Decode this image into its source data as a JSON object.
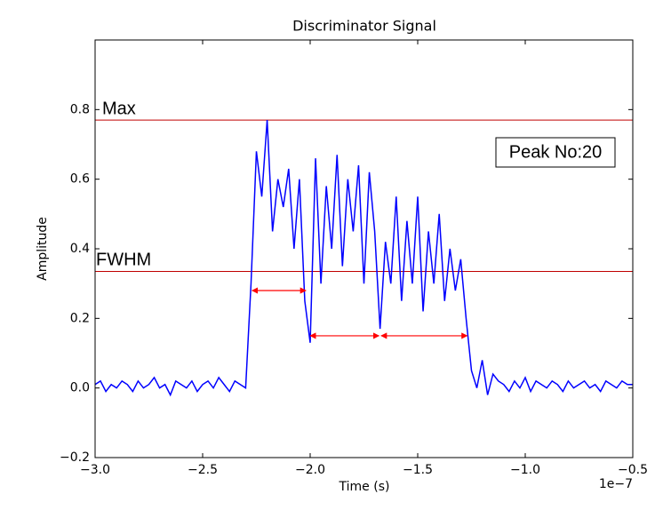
{
  "chart_data": {
    "type": "line",
    "title": "Discriminator Signal",
    "x_label": "Time (s)",
    "y_label": "Amplitude",
    "x_offset_label": "1e−7",
    "x": [
      -3.0,
      -2.975,
      -2.95,
      -2.925,
      -2.9,
      -2.875,
      -2.85,
      -2.825,
      -2.8,
      -2.775,
      -2.75,
      -2.725,
      -2.7,
      -2.675,
      -2.65,
      -2.625,
      -2.6,
      -2.575,
      -2.55,
      -2.525,
      -2.5,
      -2.475,
      -2.45,
      -2.425,
      -2.4,
      -2.375,
      -2.35,
      -2.325,
      -2.3,
      -2.275,
      -2.25,
      -2.225,
      -2.2,
      -2.175,
      -2.15,
      -2.125,
      -2.1,
      -2.075,
      -2.05,
      -2.025,
      -2.0,
      -1.975,
      -1.95,
      -1.925,
      -1.9,
      -1.875,
      -1.85,
      -1.825,
      -1.8,
      -1.775,
      -1.75,
      -1.725,
      -1.7,
      -1.675,
      -1.65,
      -1.625,
      -1.6,
      -1.575,
      -1.55,
      -1.525,
      -1.5,
      -1.475,
      -1.45,
      -1.425,
      -1.4,
      -1.375,
      -1.35,
      -1.325,
      -1.3,
      -1.275,
      -1.25,
      -1.225,
      -1.2,
      -1.175,
      -1.15,
      -1.125,
      -1.1,
      -1.075,
      -1.05,
      -1.025,
      -1.0,
      -0.975,
      -0.95,
      -0.925,
      -0.9,
      -0.875,
      -0.85,
      -0.825,
      -0.8,
      -0.775,
      -0.75,
      -0.725,
      -0.7,
      -0.675,
      -0.65,
      -0.625,
      -0.6,
      -0.575,
      -0.55,
      -0.525,
      -0.5
    ],
    "series": [
      {
        "color": "#0000ff",
        "values": [
          0.01,
          0.02,
          -0.01,
          0.01,
          0.0,
          0.02,
          0.01,
          -0.01,
          0.02,
          0.0,
          0.01,
          0.03,
          0.0,
          0.01,
          -0.02,
          0.02,
          0.01,
          0.0,
          0.02,
          -0.01,
          0.01,
          0.02,
          0.0,
          0.03,
          0.01,
          -0.01,
          0.02,
          0.01,
          0.0,
          0.3,
          0.68,
          0.55,
          0.77,
          0.45,
          0.6,
          0.52,
          0.63,
          0.4,
          0.6,
          0.25,
          0.13,
          0.66,
          0.3,
          0.58,
          0.4,
          0.67,
          0.35,
          0.6,
          0.45,
          0.64,
          0.3,
          0.62,
          0.45,
          0.17,
          0.42,
          0.3,
          0.55,
          0.25,
          0.48,
          0.3,
          0.55,
          0.22,
          0.45,
          0.3,
          0.5,
          0.25,
          0.4,
          0.28,
          0.37,
          0.2,
          0.05,
          0.0,
          0.08,
          -0.02,
          0.04,
          0.02,
          0.01,
          -0.01,
          0.02,
          0.0,
          0.03,
          -0.01,
          0.02,
          0.01,
          0.0,
          0.02,
          0.01,
          -0.01,
          0.02,
          0.0,
          0.01,
          0.02,
          0.0,
          0.01,
          -0.01,
          0.02,
          0.01,
          0.0,
          0.02,
          0.01,
          0.01
        ]
      }
    ],
    "hlines": [
      {
        "label": "Max",
        "value": 0.77,
        "color": "#c00000"
      },
      {
        "label": "FWHM",
        "value": 0.335,
        "color": "#c00000"
      }
    ],
    "arrows": [
      {
        "x": [
          -2.27,
          -2.02
        ],
        "y": 0.28,
        "color": "#ff0000"
      },
      {
        "x": [
          -2.0,
          -1.68
        ],
        "y": 0.15,
        "color": "#ff0000"
      },
      {
        "x": [
          -1.67,
          -1.27
        ],
        "y": 0.15,
        "color": "#ff0000"
      }
    ],
    "annotation": "Peak No:20",
    "xlim": [
      -3.0,
      -0.5
    ],
    "xticks": [
      {
        "value": -3.0,
        "label": "−3.0"
      },
      {
        "value": -2.5,
        "label": "−2.5"
      },
      {
        "value": -2.0,
        "label": "−2.0"
      },
      {
        "value": -1.5,
        "label": "−1.5"
      },
      {
        "value": -1.0,
        "label": "−1.0"
      },
      {
        "value": -0.5,
        "label": "−0.5"
      }
    ],
    "ylim": [
      -0.2,
      1.0
    ],
    "yticks": [
      {
        "value": -0.2,
        "label": "−0.2"
      },
      {
        "value": 0.0,
        "label": "0.0"
      },
      0.2,
      0.4,
      0.6,
      0.8
    ]
  }
}
